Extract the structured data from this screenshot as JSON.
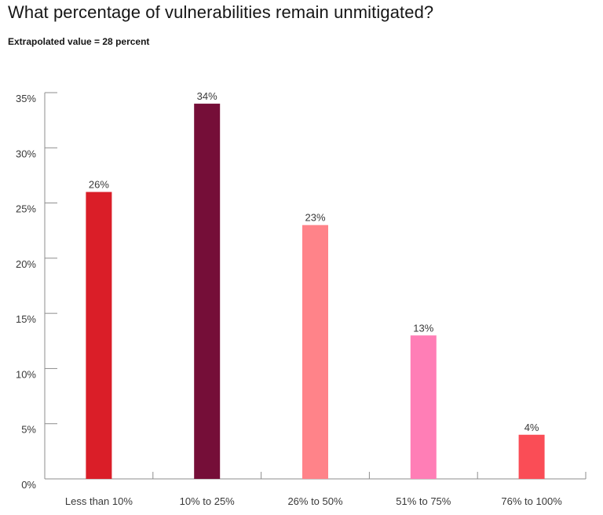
{
  "header": {
    "title": "What percentage of vulnerabilities remain unmitigated?",
    "subtitle": "Extrapolated value = 28 percent"
  },
  "chart_data": {
    "type": "bar",
    "title": "What percentage of vulnerabilities remain unmitigated?",
    "subtitle": "Extrapolated value = 28 percent",
    "categories": [
      "Less than 10%",
      "10% to 25%",
      "26% to 50%",
      "51% to 75%",
      "76% to 100%"
    ],
    "values": [
      26,
      34,
      23,
      13,
      4
    ],
    "value_labels": [
      "26%",
      "34%",
      "23%",
      "13%",
      "4%"
    ],
    "colors": [
      "#da1e28",
      "#750e38",
      "#ff8389",
      "#ff7eb6",
      "#fa4d56"
    ],
    "yticks": [
      0,
      5,
      10,
      15,
      20,
      25,
      30,
      35
    ],
    "ytick_labels": [
      "0%",
      "5%",
      "10%",
      "15%",
      "20%",
      "25%",
      "30%",
      "35%"
    ],
    "ylim": [
      0,
      35
    ],
    "xlabel": "",
    "ylabel": "",
    "grid": false,
    "legend": "none"
  }
}
